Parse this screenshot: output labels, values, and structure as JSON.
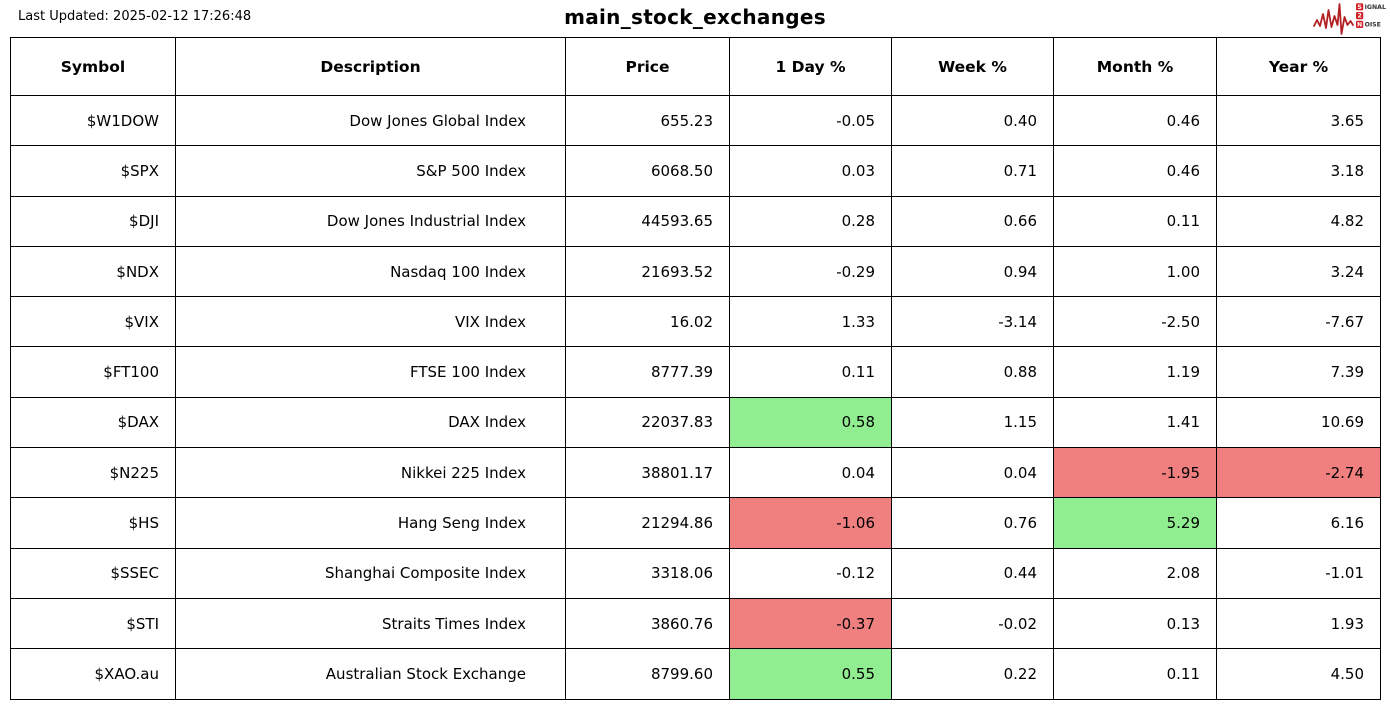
{
  "header": {
    "last_updated": "Last Updated: 2025-02-12 17:26:48",
    "title": "main_stock_exchanges",
    "logo": {
      "name": "signal-2-noise-logo",
      "line1_boxed": "S",
      "line1_rest": "IGNAL",
      "line2_boxed": "2",
      "line3_boxed": "N",
      "line3_rest": "OISE"
    }
  },
  "colors": {
    "green": "#90EE90",
    "red": "#F08080",
    "border": "#000000",
    "logo_box_red": "#D02027",
    "logo_wave_red": "#B22024",
    "logo_text": "#333333"
  },
  "chart_data": {
    "type": "table",
    "title": "main_stock_exchanges",
    "columns": [
      {
        "key": "symbol",
        "label": "Symbol"
      },
      {
        "key": "description",
        "label": "Description"
      },
      {
        "key": "price",
        "label": "Price"
      },
      {
        "key": "day",
        "label": "1 Day %"
      },
      {
        "key": "week",
        "label": "Week %"
      },
      {
        "key": "month",
        "label": "Month %"
      },
      {
        "key": "year",
        "label": "Year %"
      }
    ],
    "rows": [
      {
        "symbol": "$W1DOW",
        "description": "Dow Jones Global Index",
        "price": "655.23",
        "day": "-0.05",
        "week": "0.40",
        "month": "0.46",
        "year": "3.65",
        "highlights": {}
      },
      {
        "symbol": "$SPX",
        "description": "S&P 500 Index",
        "price": "6068.50",
        "day": "0.03",
        "week": "0.71",
        "month": "0.46",
        "year": "3.18",
        "highlights": {}
      },
      {
        "symbol": "$DJI",
        "description": "Dow Jones Industrial Index",
        "price": "44593.65",
        "day": "0.28",
        "week": "0.66",
        "month": "0.11",
        "year": "4.82",
        "highlights": {}
      },
      {
        "symbol": "$NDX",
        "description": "Nasdaq 100 Index",
        "price": "21693.52",
        "day": "-0.29",
        "week": "0.94",
        "month": "1.00",
        "year": "3.24",
        "highlights": {}
      },
      {
        "symbol": "$VIX",
        "description": "VIX Index",
        "price": "16.02",
        "day": "1.33",
        "week": "-3.14",
        "month": "-2.50",
        "year": "-7.67",
        "highlights": {}
      },
      {
        "symbol": "$FT100",
        "description": "FTSE 100 Index",
        "price": "8777.39",
        "day": "0.11",
        "week": "0.88",
        "month": "1.19",
        "year": "7.39",
        "highlights": {}
      },
      {
        "symbol": "$DAX",
        "description": "DAX Index",
        "price": "22037.83",
        "day": "0.58",
        "week": "1.15",
        "month": "1.41",
        "year": "10.69",
        "highlights": {
          "day": "green"
        }
      },
      {
        "symbol": "$N225",
        "description": "Nikkei 225 Index",
        "price": "38801.17",
        "day": "0.04",
        "week": "0.04",
        "month": "-1.95",
        "year": "-2.74",
        "highlights": {
          "month": "red",
          "year": "red"
        }
      },
      {
        "symbol": "$HS",
        "description": "Hang Seng Index",
        "price": "21294.86",
        "day": "-1.06",
        "week": "0.76",
        "month": "5.29",
        "year": "6.16",
        "highlights": {
          "day": "red",
          "month": "green"
        }
      },
      {
        "symbol": "$SSEC",
        "description": "Shanghai Composite Index",
        "price": "3318.06",
        "day": "-0.12",
        "week": "0.44",
        "month": "2.08",
        "year": "-1.01",
        "highlights": {}
      },
      {
        "symbol": "$STI",
        "description": "Straits Times Index",
        "price": "3860.76",
        "day": "-0.37",
        "week": "-0.02",
        "month": "0.13",
        "year": "1.93",
        "highlights": {
          "day": "red"
        }
      },
      {
        "symbol": "$XAO.au",
        "description": "Australian Stock Exchange",
        "price": "8799.60",
        "day": "0.55",
        "week": "0.22",
        "month": "0.11",
        "year": "4.50",
        "highlights": {
          "day": "green"
        }
      }
    ]
  }
}
